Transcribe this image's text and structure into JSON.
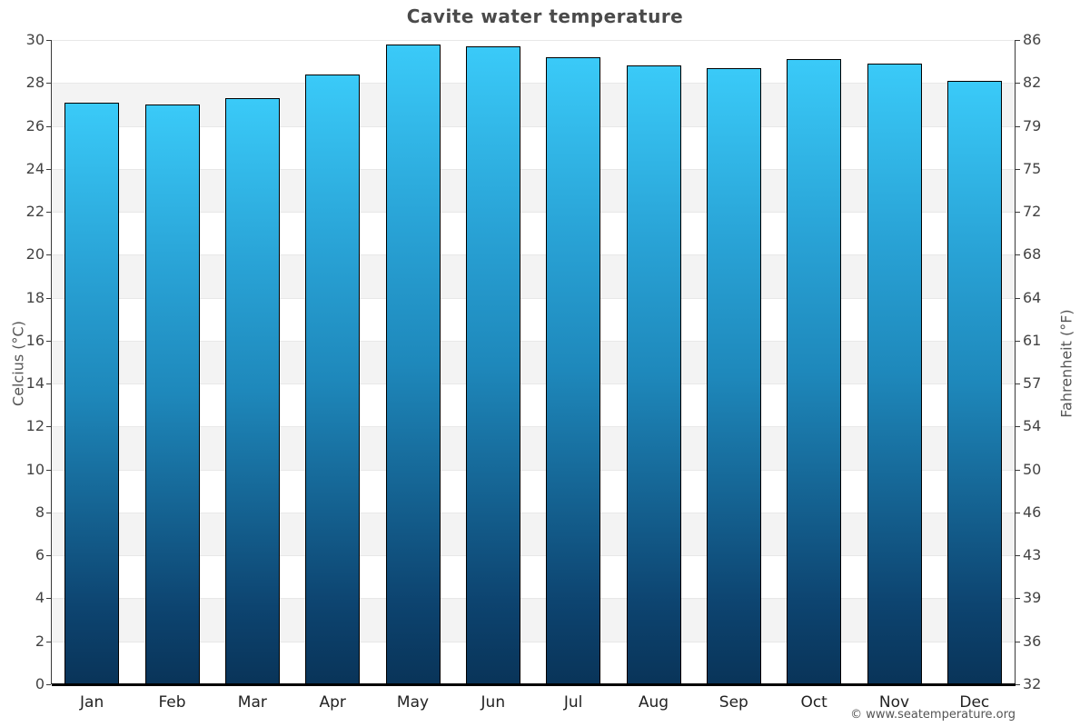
{
  "footer": "© www.seatemperature.org",
  "chart_data": {
    "type": "bar",
    "title": "Cavite water temperature",
    "categories": [
      "Jan",
      "Feb",
      "Mar",
      "Apr",
      "May",
      "Jun",
      "Jul",
      "Aug",
      "Sep",
      "Oct",
      "Nov",
      "Dec"
    ],
    "values": [
      27.1,
      27.0,
      27.3,
      28.4,
      29.8,
      29.7,
      29.2,
      28.8,
      28.7,
      29.1,
      28.9,
      28.1
    ],
    "unit": "°C",
    "ylabel_left": "Celcius (°C)",
    "ylabel_right": "Fahrenheit (°F)",
    "ylim": [
      0,
      30
    ],
    "ytick_step_celsius": 2,
    "yticks_celsius": [
      "0",
      "2",
      "4",
      "6",
      "8",
      "10",
      "12",
      "14",
      "16",
      "18",
      "20",
      "22",
      "24",
      "26",
      "28",
      "30"
    ],
    "yticks_fahrenheit": [
      "32",
      "36",
      "39",
      "43",
      "46",
      "50",
      "54",
      "57",
      "61",
      "64",
      "68",
      "72",
      "75",
      "79",
      "82",
      "86"
    ],
    "legend": "none",
    "grid": "alternating-horizontal-bands",
    "gray_band_ranges_celsius": [
      [
        2,
        4
      ],
      [
        6,
        8
      ],
      [
        10,
        12
      ],
      [
        14,
        16
      ],
      [
        18,
        20
      ],
      [
        22,
        24
      ],
      [
        26,
        28
      ]
    ],
    "colors": {
      "bar_gradient": [
        "#3acaf8 0%",
        "#29a3d6 28%",
        "#1e88bb 50%",
        "#0d4470 87%",
        "#093459 100%"
      ],
      "bar_border": "#000000",
      "band_fill": "#f3f3f3",
      "gridline": "#e8e8e8",
      "axis_line": "#3a3a3a",
      "baseline": "#000000",
      "title_color": "#4a4a4a",
      "tick_label_color": "#444444",
      "month_label_color": "#222222",
      "footer_color": "#555555"
    }
  }
}
